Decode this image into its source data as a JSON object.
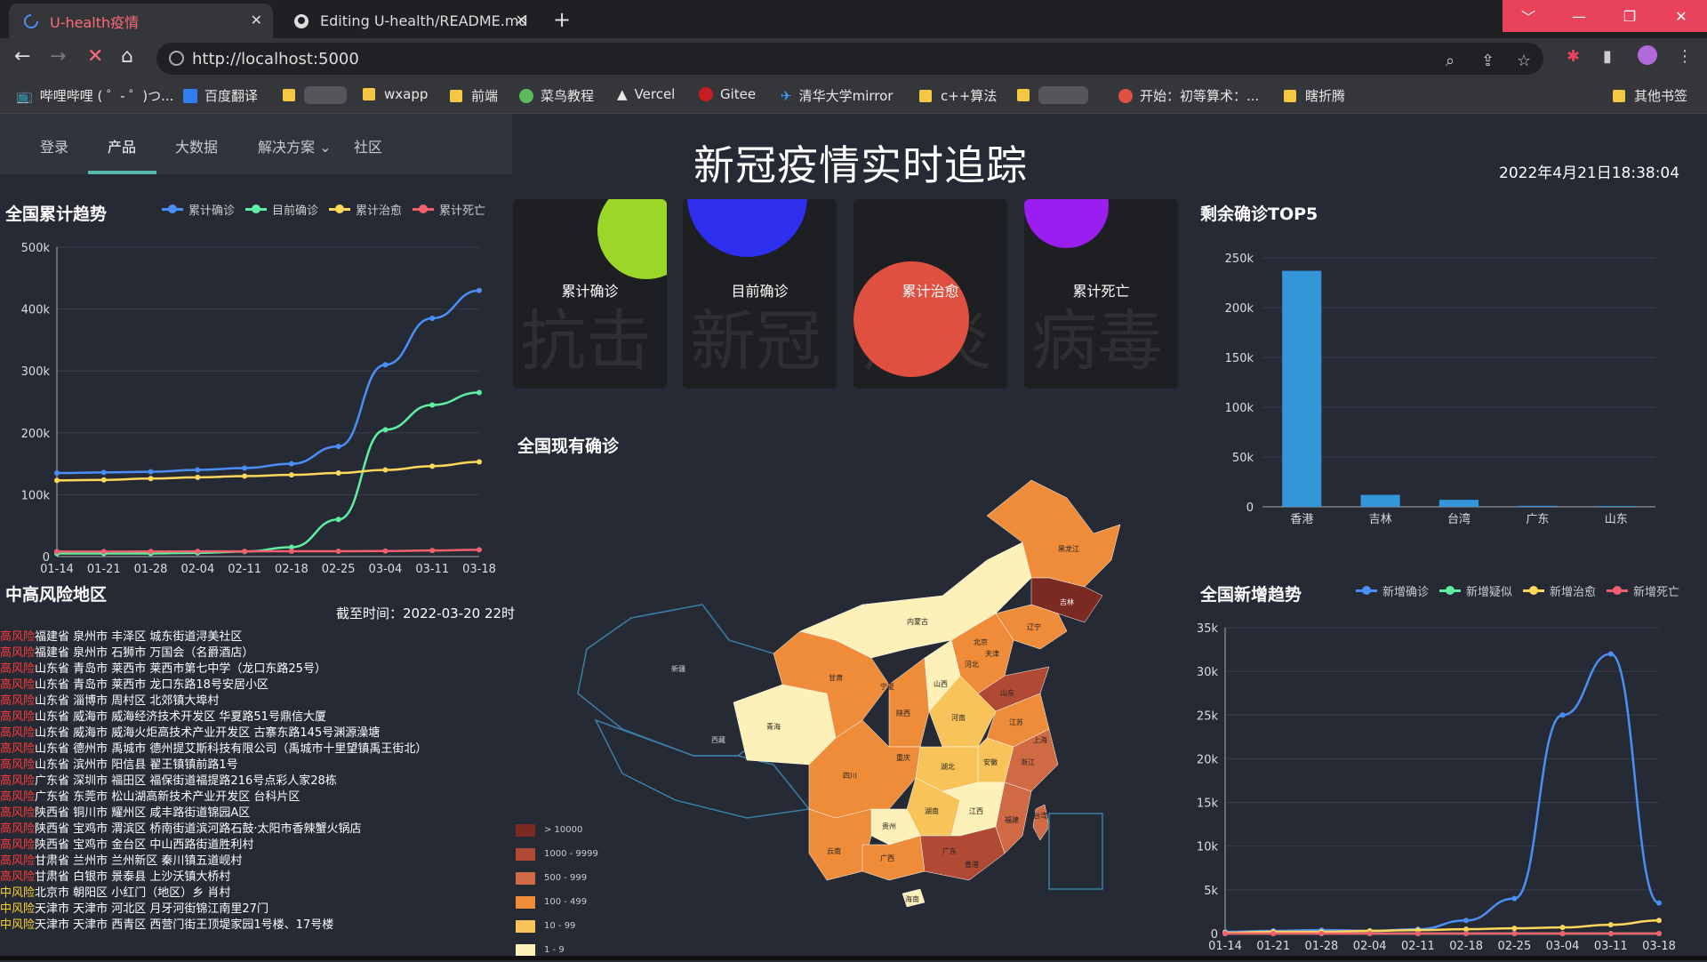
{
  "browser": {
    "tabs": [
      {
        "title": "U-health疫情",
        "active": true
      },
      {
        "title": "Editing U-health/README.md",
        "active": false
      }
    ],
    "new_tab": "+",
    "url": "http://localhost:5000",
    "window_controls": [
      "﹀",
      "—",
      "❐",
      "✕"
    ],
    "bookmarks": [
      {
        "label": "哔哩哔哩 ( ゜- ゜)つ..."
      },
      {
        "label": "百度翻译"
      },
      {
        "label": ""
      },
      {
        "label": "wxapp"
      },
      {
        "label": "前端"
      },
      {
        "label": "菜鸟教程"
      },
      {
        "label": "Vercel"
      },
      {
        "label": "Gitee"
      },
      {
        "label": "清华大学mirror"
      },
      {
        "label": "c++算法"
      },
      {
        "label": ""
      },
      {
        "label": "开始：初等算术：..."
      },
      {
        "label": "瞎折腾"
      },
      {
        "label": "其他书签"
      }
    ]
  },
  "menu": {
    "items": [
      "登录",
      "产品",
      "大数据",
      "解决方案",
      "社区"
    ],
    "active": "产品"
  },
  "page_title": "新冠疫情实时追踪",
  "clock": "2022年4月21日18:38:04",
  "cards": [
    {
      "label": "累计确诊",
      "bg": "抗击",
      "color": "#9ad729"
    },
    {
      "label": "目前确诊",
      "bg": "新冠",
      "color": "#2f2ff0"
    },
    {
      "label": "累计治愈",
      "bg": "疫炎",
      "color": "#e05040"
    },
    {
      "label": "累计死亡",
      "bg": "病毒",
      "color": "#9a1ef0"
    }
  ],
  "sections": {
    "trend": "全国累计趋势",
    "risk": "中高风险地区",
    "map": "全国现有确诊",
    "top5": "剩余确诊TOP5",
    "new_trend": "全国新增趋势"
  },
  "risk_time": "截至时间：2022-03-20 22时",
  "risk_areas": [
    {
      "level": "高风险",
      "type": "high",
      "text": "福建省 泉州市 丰泽区 城东街道浔美社区"
    },
    {
      "level": "高风险",
      "type": "high",
      "text": "福建省 泉州市 石狮市 万国会（名爵酒店）"
    },
    {
      "level": "高风险",
      "type": "high",
      "text": "山东省 青岛市 莱西市 莱西市第七中学（龙口东路25号）"
    },
    {
      "level": "高风险",
      "type": "high",
      "text": "山东省 青岛市 莱西市 龙口东路18号安居小区"
    },
    {
      "level": "高风险",
      "type": "high",
      "text": "山东省 淄博市 周村区 北郊镇大埠村"
    },
    {
      "level": "高风险",
      "type": "high",
      "text": "山东省 威海市 威海经济技术开发区 华夏路51号鼎信大厦"
    },
    {
      "level": "高风险",
      "type": "high",
      "text": "山东省 威海市 威海火炬高技术产业开发区 古寨东路145号渊源澡塘"
    },
    {
      "level": "高风险",
      "type": "high",
      "text": "山东省 德州市 禹城市 德州提艾斯科技有限公司（禹城市十里望镇禹王街北）"
    },
    {
      "level": "高风险",
      "type": "high",
      "text": "山东省 滨州市 阳信县 翟王镇镇前路1号"
    },
    {
      "level": "高风险",
      "type": "high",
      "text": "广东省 深圳市 福田区 福保街道福提路216号点彩人家28栋"
    },
    {
      "level": "高风险",
      "type": "high",
      "text": "广东省 东莞市 松山湖高新技术产业开发区 台科片区"
    },
    {
      "level": "高风险",
      "type": "high",
      "text": "陕西省 铜川市 耀州区 咸丰路街道锦园A区"
    },
    {
      "level": "高风险",
      "type": "high",
      "text": "陕西省 宝鸡市 渭滨区 桥南街道滨河路石鼓·太阳市香辣蟹火锅店"
    },
    {
      "level": "高风险",
      "type": "high",
      "text": "陕西省 宝鸡市 金台区 中山西路街道胜利村"
    },
    {
      "level": "高风险",
      "type": "high",
      "text": "甘肃省 兰州市 兰州新区 秦川镇五道岘村"
    },
    {
      "level": "高风险",
      "type": "high",
      "text": "甘肃省 白银市 景泰县 上沙沃镇大桥村"
    },
    {
      "level": "中风险",
      "type": "mid",
      "text": "北京市 朝阳区 小红门（地区）乡 肖村"
    },
    {
      "level": "中风险",
      "type": "mid",
      "text": "天津市 天津市 河北区 月牙河街锦江南里27门"
    },
    {
      "level": "中风险",
      "type": "mid",
      "text": "天津市 天津市 西青区 西营门街王顶堤家园1号楼、17号楼"
    }
  ],
  "map_legend": [
    {
      "label": "> 10000",
      "color": "#7a2a20"
    },
    {
      "label": "1000 - 9999",
      "color": "#b04a34"
    },
    {
      "label": "500 - 999",
      "color": "#cf6a44"
    },
    {
      "label": "100 - 499",
      "color": "#ef8c3a"
    },
    {
      "label": "10 - 99",
      "color": "#f8c45a"
    },
    {
      "label": "1 - 9",
      "color": "#fdf0b8"
    }
  ],
  "provinces": [
    "新疆",
    "西藏",
    "青海",
    "甘肃",
    "内蒙古",
    "黑龙江",
    "吉林",
    "辽宁",
    "北京",
    "天津",
    "河北",
    "山西",
    "陕西",
    "宁夏",
    "山东",
    "河南",
    "江苏",
    "安徽",
    "湖北",
    "四川",
    "重庆",
    "浙江",
    "上海",
    "贵州",
    "湖南",
    "江西",
    "福建",
    "云南",
    "广西",
    "广东",
    "海南",
    "台湾",
    "香港"
  ],
  "colors": {
    "confirm": "#4a8ff7",
    "current": "#5ef0a0",
    "cure": "#ffd75a",
    "death": "#f2606e"
  },
  "chart_data": [
    {
      "type": "line",
      "title": "全国累计趋势",
      "x": [
        "01-14",
        "01-21",
        "01-28",
        "02-04",
        "02-11",
        "02-18",
        "02-25",
        "03-04",
        "03-11",
        "03-18"
      ],
      "ylim": [
        0,
        500000
      ],
      "yticks": [
        "0",
        "100k",
        "200k",
        "300k",
        "400k",
        "500k"
      ],
      "series": [
        {
          "name": "累计确诊",
          "values": [
            135000,
            136000,
            137000,
            140000,
            143000,
            150000,
            178000,
            310000,
            385000,
            430000
          ]
        },
        {
          "name": "目前确诊",
          "values": [
            5000,
            5000,
            5000,
            6000,
            8000,
            15000,
            60000,
            205000,
            245000,
            265000
          ]
        },
        {
          "name": "累计治愈",
          "values": [
            123000,
            124000,
            126000,
            128000,
            130000,
            132000,
            135000,
            140000,
            146000,
            153000
          ]
        },
        {
          "name": "累计死亡",
          "values": [
            8000,
            8000,
            8200,
            8400,
            8500,
            8600,
            8700,
            9000,
            9800,
            11000
          ]
        }
      ]
    },
    {
      "type": "bar",
      "title": "剩余确诊TOP5",
      "categories": [
        "香港",
        "吉林",
        "台湾",
        "广东",
        "山东"
      ],
      "values": [
        237000,
        12000,
        7000,
        1000,
        800
      ],
      "ylim": [
        0,
        250000
      ],
      "yticks": [
        "0",
        "50k",
        "100k",
        "150k",
        "200k",
        "250k"
      ]
    },
    {
      "type": "line",
      "title": "全国新增趋势",
      "x": [
        "01-14",
        "01-21",
        "01-28",
        "02-04",
        "02-11",
        "02-18",
        "02-25",
        "03-04",
        "03-11",
        "03-18"
      ],
      "ylim": [
        0,
        35000
      ],
      "yticks": [
        "0",
        "5k",
        "10k",
        "15k",
        "20k",
        "25k",
        "30k",
        "35k"
      ],
      "series": [
        {
          "name": "新增确诊",
          "values": [
            200,
            300,
            400,
            300,
            500,
            1500,
            4000,
            25000,
            32000,
            3500
          ]
        },
        {
          "name": "新增疑似",
          "values": [
            0,
            0,
            0,
            0,
            0,
            0,
            0,
            0,
            0,
            0
          ]
        },
        {
          "name": "新增治愈",
          "values": [
            100,
            200,
            200,
            300,
            400,
            500,
            600,
            700,
            1000,
            1500
          ]
        },
        {
          "name": "新增死亡",
          "values": [
            0,
            0,
            0,
            0,
            0,
            0,
            0,
            0,
            0,
            0
          ]
        }
      ]
    }
  ]
}
